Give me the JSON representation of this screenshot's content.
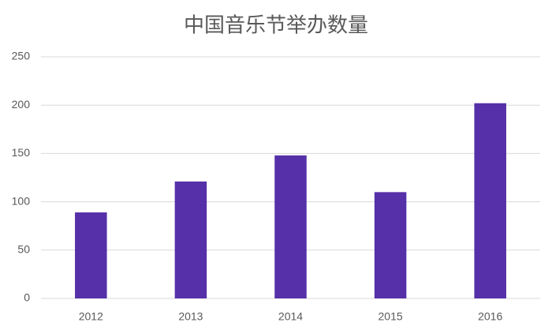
{
  "chart_data": {
    "type": "bar",
    "title": "中国音乐节举办数量",
    "categories": [
      "2012",
      "2013",
      "2014",
      "2015",
      "2016"
    ],
    "values": [
      89,
      121,
      148,
      110,
      202
    ],
    "color": "#5530a8",
    "ylim": [
      0,
      250
    ],
    "yticks": [
      0,
      50,
      100,
      150,
      200,
      250
    ],
    "grid": true
  }
}
